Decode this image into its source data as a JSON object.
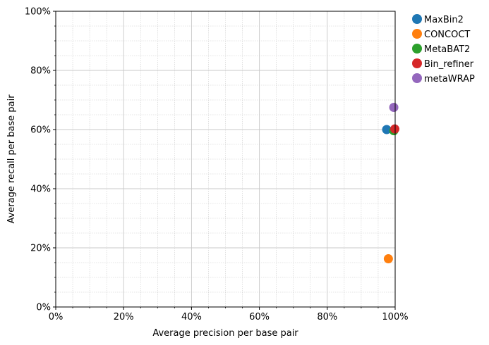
{
  "chart_data": {
    "type": "scatter",
    "title": "",
    "xlabel": "Average precision per base pair",
    "ylabel": "Average recall per base pair",
    "xlim": [
      0,
      100
    ],
    "ylim": [
      0,
      100
    ],
    "x_ticks": [
      0,
      20,
      40,
      60,
      80,
      100
    ],
    "x_tick_labels": [
      "0%",
      "20%",
      "40%",
      "60%",
      "80%",
      "100%"
    ],
    "y_ticks": [
      0,
      20,
      40,
      60,
      80,
      100
    ],
    "y_tick_labels": [
      "0%",
      "20%",
      "40%",
      "60%",
      "80%",
      "100%"
    ],
    "grid": true,
    "minor_grid": true,
    "legend_position": "outside-top-right",
    "series": [
      {
        "name": "MaxBin2",
        "color": "#1f77b4",
        "points": [
          {
            "x": 97.5,
            "y": 60.0
          }
        ]
      },
      {
        "name": "CONCOCT",
        "color": "#ff7f0e",
        "points": [
          {
            "x": 98.0,
            "y": 16.3
          }
        ]
      },
      {
        "name": "MetaBAT2",
        "color": "#2ca02c",
        "points": [
          {
            "x": 99.6,
            "y": 59.6
          }
        ]
      },
      {
        "name": "Bin_refiner",
        "color": "#d62728",
        "points": [
          {
            "x": 99.9,
            "y": 60.2
          }
        ]
      },
      {
        "name": "metaWRAP",
        "color": "#9467bd",
        "points": [
          {
            "x": 99.6,
            "y": 67.5
          }
        ]
      }
    ]
  }
}
